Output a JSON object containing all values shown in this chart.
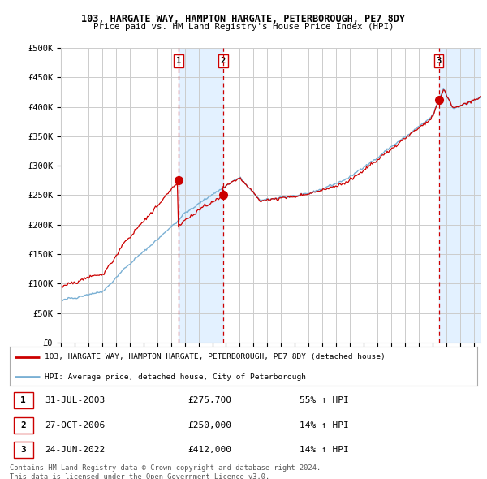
{
  "title1": "103, HARGATE WAY, HAMPTON HARGATE, PETERBOROUGH, PE7 8DY",
  "title2": "Price paid vs. HM Land Registry's House Price Index (HPI)",
  "ylim": [
    0,
    500000
  ],
  "yticks": [
    0,
    50000,
    100000,
    150000,
    200000,
    250000,
    300000,
    350000,
    400000,
    450000,
    500000
  ],
  "ytick_labels": [
    "£0",
    "£50K",
    "£100K",
    "£150K",
    "£200K",
    "£250K",
    "£300K",
    "£350K",
    "£400K",
    "£450K",
    "£500K"
  ],
  "x_start_year": 1995,
  "x_end_year": 2025,
  "sale_prices": [
    275700,
    250000,
    412000
  ],
  "sale_labels": [
    "1",
    "2",
    "3"
  ],
  "legend_line1": "103, HARGATE WAY, HAMPTON HARGATE, PETERBOROUGH, PE7 8DY (detached house)",
  "legend_line2": "HPI: Average price, detached house, City of Peterborough",
  "table_rows": [
    [
      "1",
      "31-JUL-2003",
      "£275,700",
      "55% ↑ HPI"
    ],
    [
      "2",
      "27-OCT-2006",
      "£250,000",
      "14% ↑ HPI"
    ],
    [
      "3",
      "24-JUN-2022",
      "£412,000",
      "14% ↑ HPI"
    ]
  ],
  "footer1": "Contains HM Land Registry data © Crown copyright and database right 2024.",
  "footer2": "This data is licensed under the Open Government Licence v3.0.",
  "red_color": "#cc0000",
  "blue_color": "#7ab0d4",
  "shade_color": "#ddeeff",
  "grid_color": "#cccccc",
  "background_color": "#ffffff"
}
